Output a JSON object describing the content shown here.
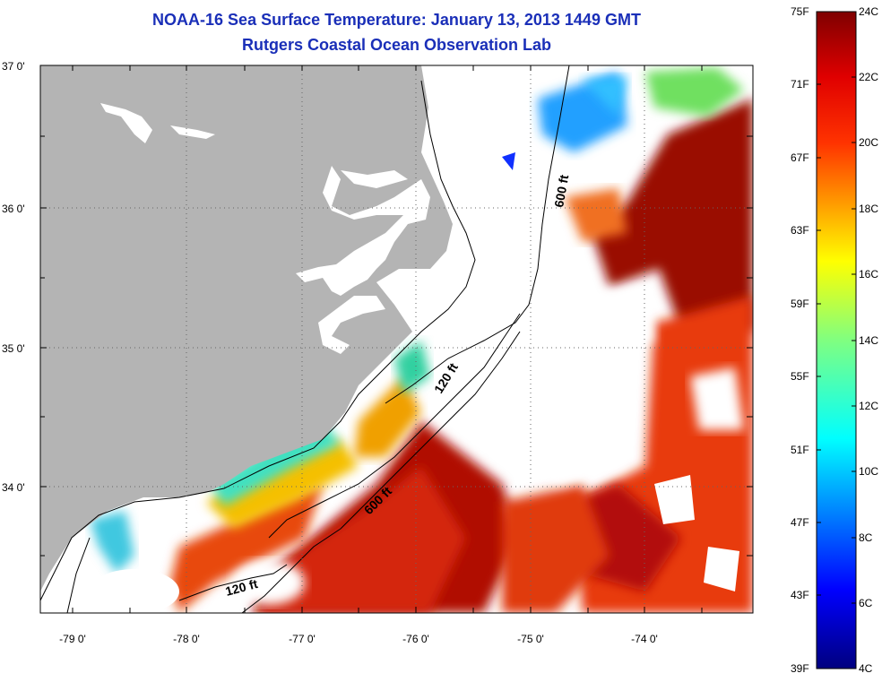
{
  "title": "NOAA-16 Sea Surface Temperature:  January 13, 2013 1449 GMT",
  "subtitle": "Rutgers Coastal Ocean Observation Lab",
  "lat_ticks": [
    "37 0'",
    "36 0'",
    "35 0'",
    "34 0'"
  ],
  "lon_ticks": [
    "-79 0'",
    "-78 0'",
    "-77 0'",
    "-76 0'",
    "-75 0'",
    "-74 0'"
  ],
  "contour_labels": {
    "upper_600": "600 ft",
    "mid_120": "120 ft",
    "lower_600": "600 ft",
    "lower_120": "120 ft"
  },
  "colorbar": {
    "fahrenheit": [
      "75F",
      "71F",
      "67F",
      "63F",
      "59F",
      "55F",
      "51F",
      "47F",
      "43F",
      "39F"
    ],
    "celsius": [
      "24C",
      "22C",
      "20C",
      "18C",
      "16C",
      "14C",
      "12C",
      "10C",
      "8C",
      "6C",
      "4C"
    ]
  },
  "colors": {
    "title": "#1a2fb8",
    "land": "#b4b4b4"
  }
}
